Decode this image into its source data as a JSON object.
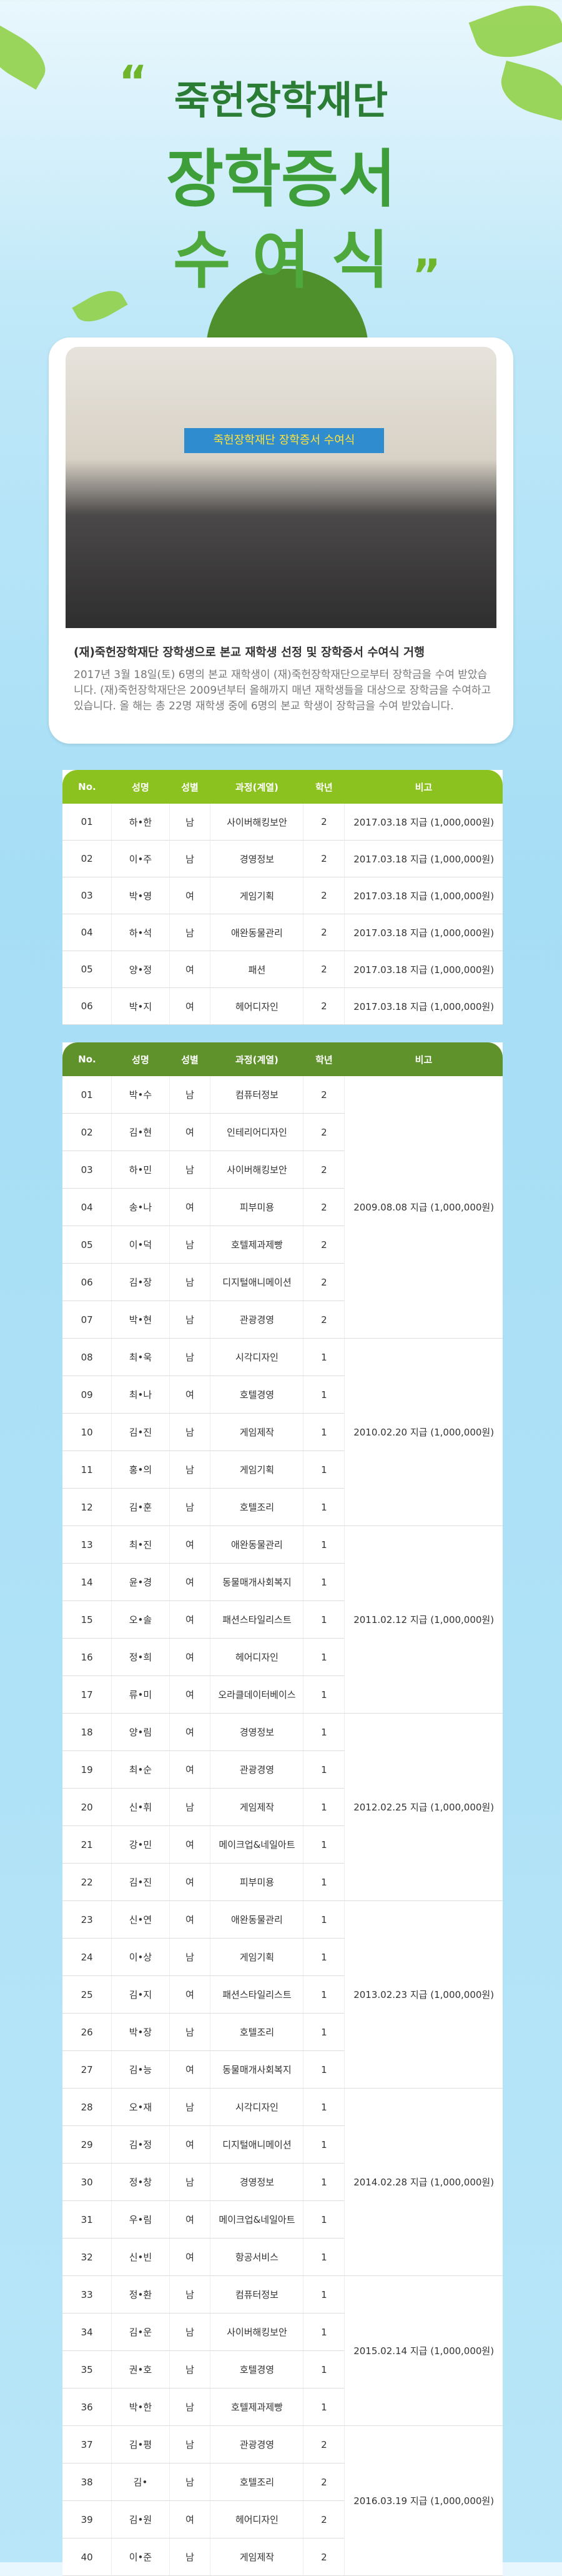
{
  "header": {
    "title_line1": "죽헌장학재단",
    "title_line2": "장학증서",
    "title_line3": "수 여 식"
  },
  "photo": {
    "banner": "죽헌장학재단 장학증서 수여식"
  },
  "article": {
    "headline": "(재)죽헌장학재단 장학생으로 본교 재학생 선정 및 장학증서 수여식 거행",
    "body": "2017년 3월 18일(토) 6명의 본교 재학생이 (재)죽헌장학재단으로부터 장학금을 수여 받았습니다. (재)죽헌장학재단은 2009년부터 올해까지 매년 재학생들을 대상으로 장학금을 수여하고 있습니다. 올 해는 총 22명 재학생 중에 6명의 본교 학생이 장학금을 수여 받았습니다."
  },
  "table1": {
    "header": [
      "No.",
      "성명",
      "성별",
      "과정(계열)",
      "학년",
      "비고"
    ],
    "rows": [
      [
        "01",
        "하•한",
        "남",
        "사이버해킹보안",
        "2",
        "2017.03.18 지급 (1,000,000원)"
      ],
      [
        "02",
        "이•주",
        "남",
        "경영정보",
        "2",
        "2017.03.18 지급 (1,000,000원)"
      ],
      [
        "03",
        "박•영",
        "여",
        "게임기획",
        "2",
        "2017.03.18 지급 (1,000,000원)"
      ],
      [
        "04",
        "하•석",
        "남",
        "애완동물관리",
        "2",
        "2017.03.18 지급 (1,000,000원)"
      ],
      [
        "05",
        "양•정",
        "여",
        "패션",
        "2",
        "2017.03.18 지급 (1,000,000원)"
      ],
      [
        "06",
        "박•지",
        "여",
        "헤어디자인",
        "2",
        "2017.03.18 지급 (1,000,000원)"
      ]
    ]
  },
  "table2": {
    "header": [
      "No.",
      "성명",
      "성별",
      "과정(계열)",
      "학년",
      "비고"
    ],
    "groups": [
      {
        "note": "2009.08.08 지급 (1,000,000원)",
        "rows": [
          [
            "01",
            "박•수",
            "남",
            "컴퓨터정보",
            "2"
          ],
          [
            "02",
            "김•현",
            "여",
            "인테리어디자인",
            "2"
          ],
          [
            "03",
            "하•민",
            "남",
            "사이버해킹보안",
            "2"
          ],
          [
            "04",
            "송•나",
            "여",
            "피부미용",
            "2"
          ],
          [
            "05",
            "이•덕",
            "남",
            "호텔제과제빵",
            "2"
          ],
          [
            "06",
            "김•장",
            "남",
            "디지털애니메이션",
            "2"
          ],
          [
            "07",
            "박•현",
            "남",
            "관광경영",
            "2"
          ]
        ]
      },
      {
        "note": "2010.02.20 지급 (1,000,000원)",
        "rows": [
          [
            "08",
            "최•욱",
            "남",
            "시각디자인",
            "1"
          ],
          [
            "09",
            "최•나",
            "여",
            "호텔경영",
            "1"
          ],
          [
            "10",
            "김•진",
            "남",
            "게임제작",
            "1"
          ],
          [
            "11",
            "홍•의",
            "남",
            "게임기획",
            "1"
          ],
          [
            "12",
            "김•훈",
            "남",
            "호텔조리",
            "1"
          ]
        ]
      },
      {
        "note": "2011.02.12 지급 (1,000,000원)",
        "rows": [
          [
            "13",
            "최•진",
            "여",
            "애완동물관리",
            "1"
          ],
          [
            "14",
            "윤•경",
            "여",
            "동물매개사회복지",
            "1"
          ],
          [
            "15",
            "오•솔",
            "여",
            "패션스타일리스트",
            "1"
          ],
          [
            "16",
            "정•희",
            "여",
            "헤어디자인",
            "1"
          ],
          [
            "17",
            "류•미",
            "여",
            "오라클데이터베이스",
            "1"
          ]
        ]
      },
      {
        "note": "2012.02.25 지급 (1,000,000원)",
        "rows": [
          [
            "18",
            "양•림",
            "여",
            "경영정보",
            "1"
          ],
          [
            "19",
            "최•순",
            "여",
            "관광경영",
            "1"
          ],
          [
            "20",
            "신•휘",
            "남",
            "게임제작",
            "1"
          ],
          [
            "21",
            "강•민",
            "여",
            "메이크업&네일아트",
            "1"
          ],
          [
            "22",
            "김•진",
            "여",
            "피부미용",
            "1"
          ]
        ]
      },
      {
        "note": "2013.02.23 지급 (1,000,000원)",
        "rows": [
          [
            "23",
            "신•연",
            "여",
            "애완동물관리",
            "1"
          ],
          [
            "24",
            "이•상",
            "남",
            "게임기획",
            "1"
          ],
          [
            "25",
            "김•지",
            "여",
            "패션스타일리스트",
            "1"
          ],
          [
            "26",
            "박•장",
            "남",
            "호텔조리",
            "1"
          ],
          [
            "27",
            "김•능",
            "여",
            "동물매개사회복지",
            "1"
          ]
        ]
      },
      {
        "note": "2014.02.28 지급 (1,000,000원)",
        "rows": [
          [
            "28",
            "오•재",
            "남",
            "시각디자인",
            "1"
          ],
          [
            "29",
            "김•정",
            "여",
            "디지털애니메이션",
            "1"
          ],
          [
            "30",
            "정•창",
            "남",
            "경영정보",
            "1"
          ],
          [
            "31",
            "우•림",
            "여",
            "메이크업&네일아트",
            "1"
          ],
          [
            "32",
            "신•빈",
            "여",
            "항공서비스",
            "1"
          ]
        ]
      },
      {
        "note": "2015.02.14 지급 (1,000,000원)",
        "rows": [
          [
            "33",
            "정•환",
            "남",
            "컴퓨터정보",
            "1"
          ],
          [
            "34",
            "김•운",
            "남",
            "사이버해킹보안",
            "1"
          ],
          [
            "35",
            "권•호",
            "남",
            "호텔경영",
            "1"
          ],
          [
            "36",
            "박•한",
            "남",
            "호텔제과제빵",
            "1"
          ]
        ]
      },
      {
        "note": "2016.03.19 지급 (1,000,000원)",
        "rows": [
          [
            "37",
            "김•평",
            "남",
            "관광경영",
            "2"
          ],
          [
            "38",
            "김•",
            "남",
            "호텔조리",
            "2"
          ],
          [
            "39",
            "김•원",
            "여",
            "헤어디자인",
            "2"
          ],
          [
            "40",
            "이•준",
            "남",
            "게임제작",
            "2"
          ]
        ]
      }
    ]
  }
}
